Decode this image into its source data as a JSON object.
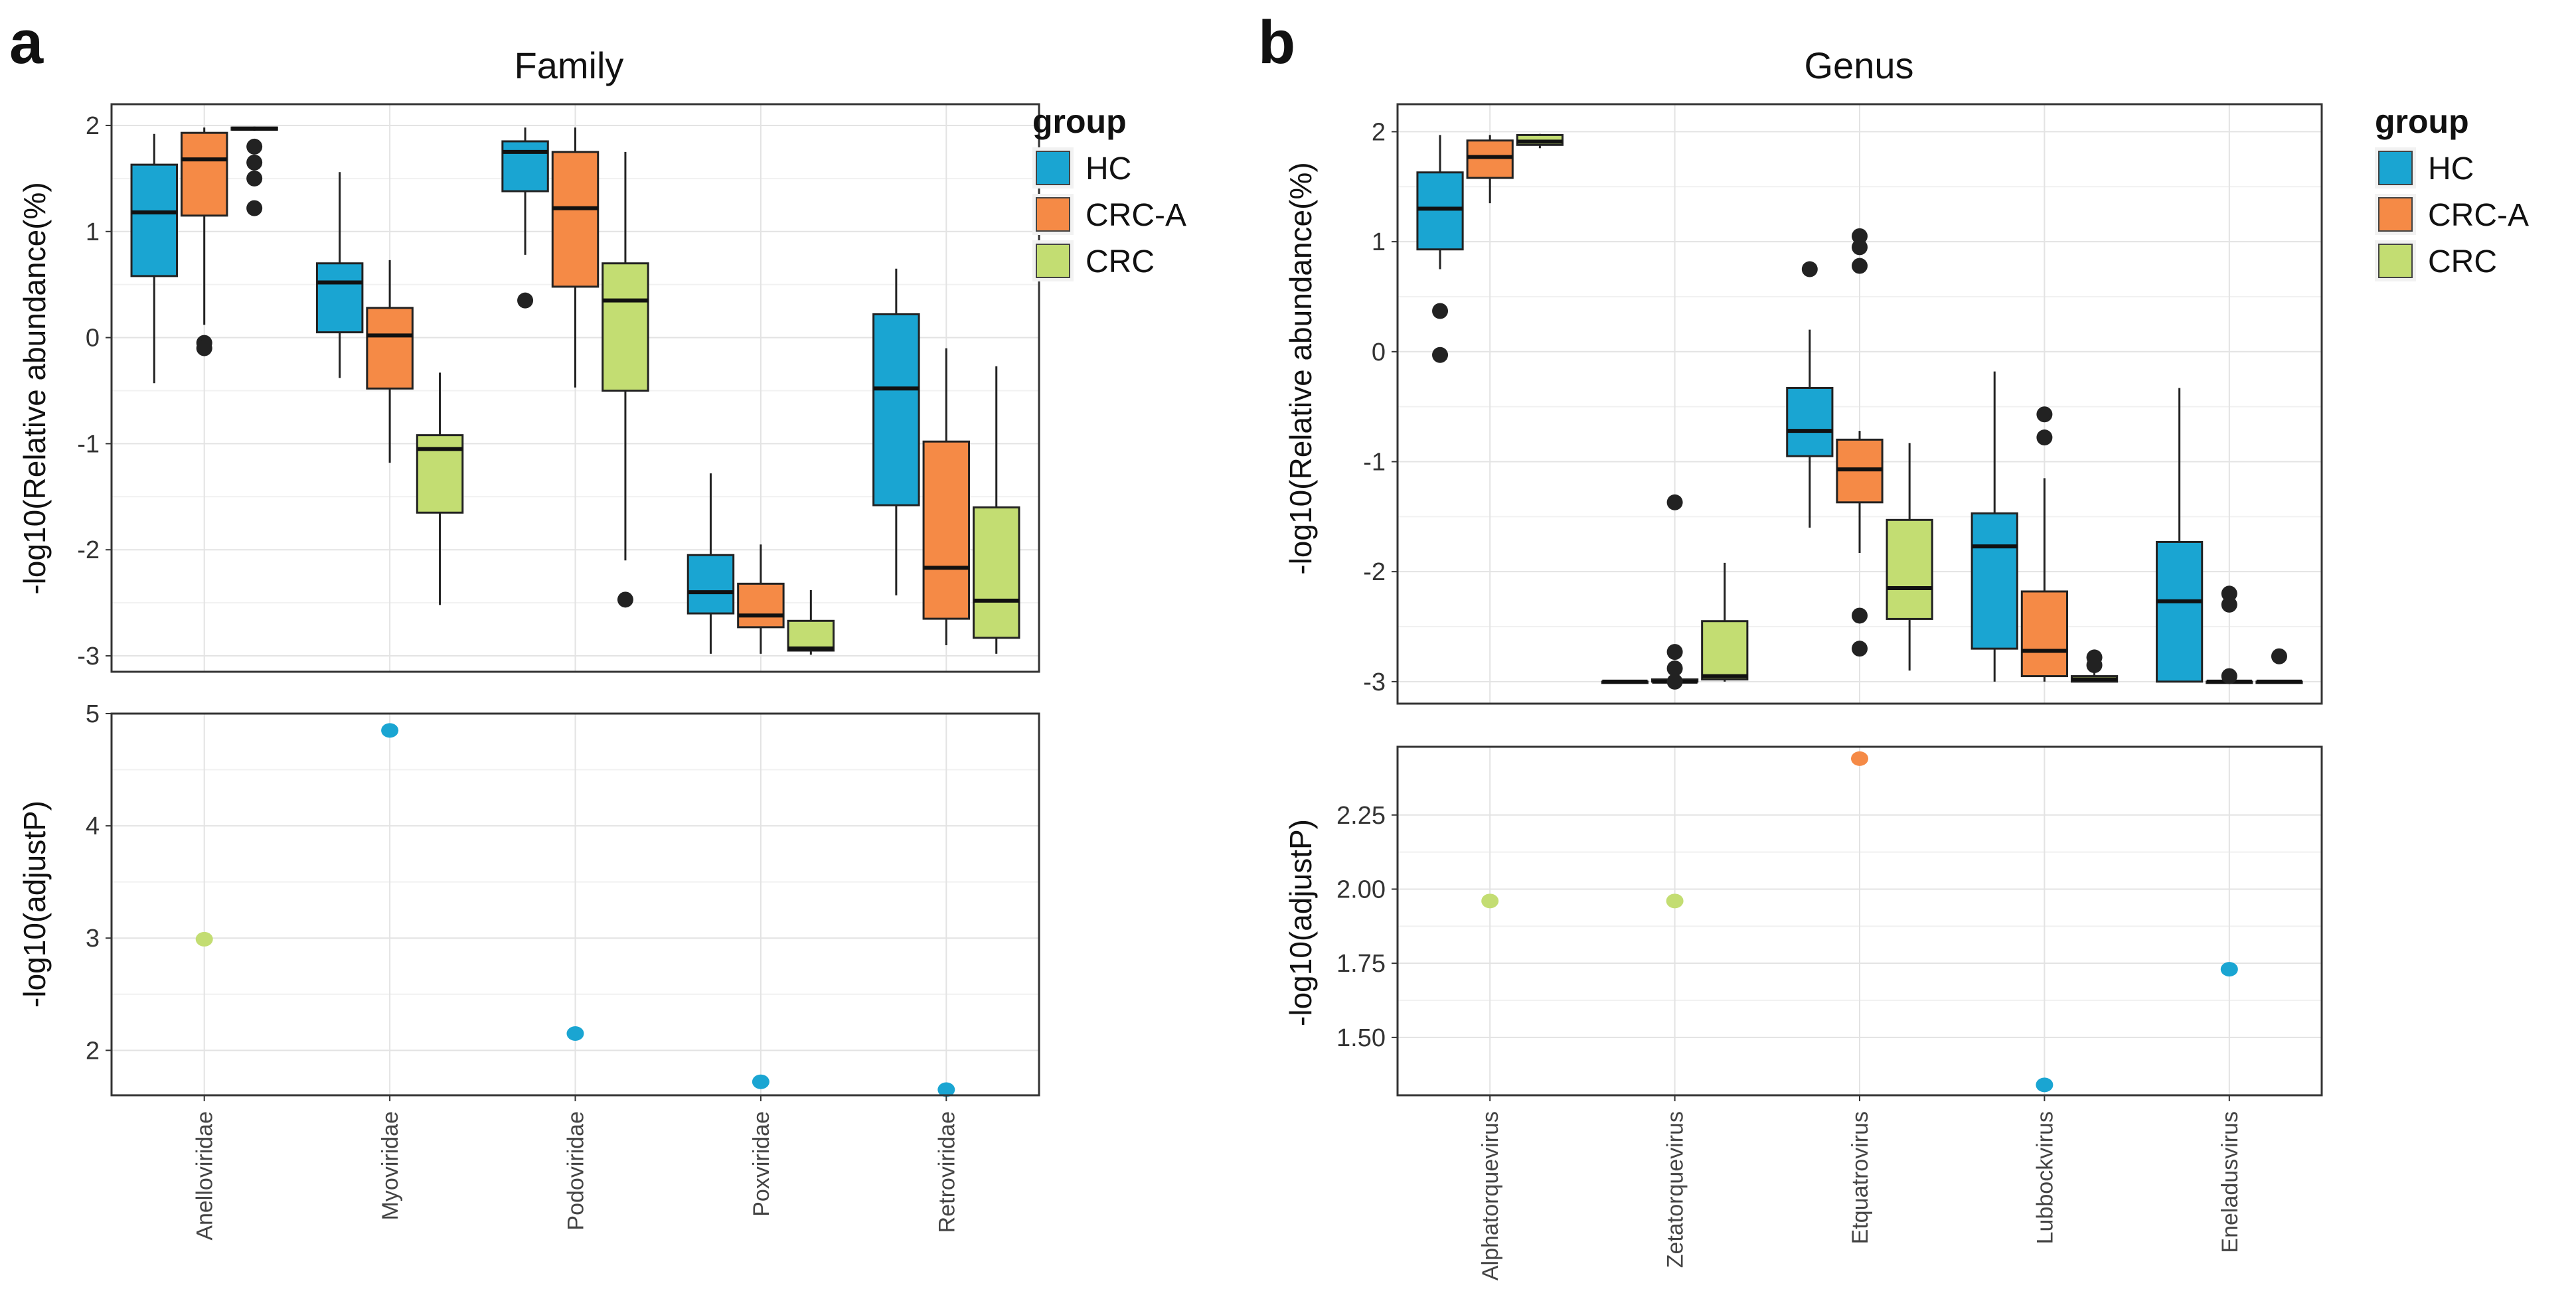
{
  "legend": {
    "title": "group",
    "items": [
      {
        "label": "HC",
        "color": "#1aa5d2"
      },
      {
        "label": "CRC-A",
        "color": "#f58a46"
      },
      {
        "label": "CRC",
        "color": "#c3dd72"
      }
    ]
  },
  "chart_data": [
    {
      "panel": "a",
      "type": "box",
      "title": "Family",
      "ylabel": "-log10(Relative abundance(%)",
      "ylim": [
        -3.15,
        2.2
      ],
      "yticks": [
        "-3",
        "-2",
        "-1",
        "0",
        "1",
        "2"
      ],
      "categories": [
        "Anelloviridae",
        "Myoviridae",
        "Podoviridae",
        "Poxviridae",
        "Retroviridae"
      ],
      "series": [
        {
          "name": "HC",
          "boxes": [
            {
              "q1": 0.58,
              "median": 1.18,
              "q3": 1.63,
              "wlo": -0.43,
              "whi": 1.92,
              "outliers": []
            },
            {
              "q1": 0.05,
              "median": 0.52,
              "q3": 0.7,
              "wlo": -0.38,
              "whi": 1.56,
              "outliers": []
            },
            {
              "q1": 1.38,
              "median": 1.75,
              "q3": 1.85,
              "wlo": 0.78,
              "whi": 1.98,
              "outliers": [
                0.35
              ]
            },
            {
              "q1": -2.6,
              "median": -2.4,
              "q3": -2.05,
              "wlo": -2.98,
              "whi": -1.28,
              "outliers": []
            },
            {
              "q1": -1.58,
              "median": -0.48,
              "q3": 0.22,
              "wlo": -2.43,
              "whi": 0.65,
              "outliers": []
            }
          ]
        },
        {
          "name": "CRC-A",
          "boxes": [
            {
              "q1": 1.15,
              "median": 1.68,
              "q3": 1.93,
              "wlo": 0.12,
              "whi": 1.98,
              "outliers": [
                -0.05,
                -0.1
              ]
            },
            {
              "q1": -0.48,
              "median": 0.02,
              "q3": 0.28,
              "wlo": -1.18,
              "whi": 0.73,
              "outliers": []
            },
            {
              "q1": 0.48,
              "median": 1.22,
              "q3": 1.75,
              "wlo": -0.47,
              "whi": 1.98,
              "outliers": []
            },
            {
              "q1": -2.73,
              "median": -2.62,
              "q3": -2.32,
              "wlo": -2.98,
              "whi": -1.95,
              "outliers": []
            },
            {
              "q1": -2.65,
              "median": -2.17,
              "q3": -0.98,
              "wlo": -2.9,
              "whi": -0.1,
              "outliers": []
            }
          ]
        },
        {
          "name": "CRC",
          "boxes": [
            {
              "q1": 1.96,
              "median": 1.97,
              "q3": 1.98,
              "wlo": 1.95,
              "whi": 1.99,
              "outliers": [
                1.8,
                1.65,
                1.5,
                1.22
              ]
            },
            {
              "q1": -1.65,
              "median": -1.05,
              "q3": -0.92,
              "wlo": -2.52,
              "whi": -0.33,
              "outliers": []
            },
            {
              "q1": -0.5,
              "median": 0.35,
              "q3": 0.7,
              "wlo": -2.1,
              "whi": 1.75,
              "outliers": [
                -2.47
              ]
            },
            {
              "q1": -2.95,
              "median": -2.93,
              "q3": -2.67,
              "wlo": -2.99,
              "whi": -2.38,
              "outliers": []
            },
            {
              "q1": -2.83,
              "median": -2.48,
              "q3": -1.6,
              "wlo": -2.98,
              "whi": -0.27,
              "outliers": []
            }
          ]
        }
      ]
    },
    {
      "panel": "a",
      "type": "scatter",
      "ylabel": "-log10(adjustP)",
      "ylim": [
        1.6,
        5.0
      ],
      "yticks": [
        "2",
        "3",
        "4",
        "5"
      ],
      "categories": [
        "Anelloviridae",
        "Myoviridae",
        "Podoviridae",
        "Poxviridae",
        "Retroviridae"
      ],
      "points": [
        {
          "category": "Anelloviridae",
          "value": 2.99,
          "group": "CRC"
        },
        {
          "category": "Myoviridae",
          "value": 4.85,
          "group": "HC"
        },
        {
          "category": "Podoviridae",
          "value": 2.15,
          "group": "HC"
        },
        {
          "category": "Poxviridae",
          "value": 1.72,
          "group": "HC"
        },
        {
          "category": "Retroviridae",
          "value": 1.65,
          "group": "HC"
        }
      ]
    },
    {
      "panel": "b",
      "type": "box",
      "title": "Genus",
      "ylabel": "-log10(Relative abundance(%)",
      "ylim": [
        -3.2,
        2.25
      ],
      "yticks": [
        "-3",
        "-2",
        "-1",
        "0",
        "1",
        "2"
      ],
      "categories": [
        "Alphatorquevirus",
        "Zetatorquevirus",
        "Etquatrovirus",
        "Lubbockvirus",
        "Eneladusvirus"
      ],
      "series": [
        {
          "name": "HC",
          "boxes": [
            {
              "q1": 0.93,
              "median": 1.3,
              "q3": 1.63,
              "wlo": 0.75,
              "whi": 1.97,
              "outliers": [
                0.37,
                -0.03
              ]
            },
            {
              "q1": -3.0,
              "median": -3.0,
              "q3": -3.0,
              "wlo": -3.0,
              "whi": -3.0,
              "outliers": []
            },
            {
              "q1": -0.95,
              "median": -0.72,
              "q3": -0.33,
              "wlo": -1.6,
              "whi": 0.2,
              "outliers": [
                0.75
              ]
            },
            {
              "q1": -2.7,
              "median": -1.77,
              "q3": -1.47,
              "wlo": -3.0,
              "whi": -0.18,
              "outliers": []
            },
            {
              "q1": -3.0,
              "median": -2.27,
              "q3": -1.73,
              "wlo": -3.0,
              "whi": -0.33,
              "outliers": []
            }
          ]
        },
        {
          "name": "CRC-A",
          "boxes": [
            {
              "q1": 1.58,
              "median": 1.77,
              "q3": 1.92,
              "wlo": 1.35,
              "whi": 1.97,
              "outliers": []
            },
            {
              "q1": -3.0,
              "median": -3.0,
              "q3": -2.98,
              "wlo": -3.0,
              "whi": -2.95,
              "outliers": [
                -1.37,
                -2.73,
                -2.88,
                -3.0
              ]
            },
            {
              "q1": -1.37,
              "median": -1.07,
              "q3": -0.8,
              "wlo": -1.83,
              "whi": -0.72,
              "outliers": [
                1.05,
                0.95,
                0.78,
                -2.4,
                -2.7
              ]
            },
            {
              "q1": -2.95,
              "median": -2.72,
              "q3": -2.18,
              "wlo": -3.0,
              "whi": -1.15,
              "outliers": [
                -0.57,
                -0.78
              ]
            },
            {
              "q1": -3.0,
              "median": -3.0,
              "q3": -3.0,
              "wlo": -3.0,
              "whi": -3.0,
              "outliers": [
                -2.2,
                -2.3,
                -2.95
              ]
            }
          ]
        },
        {
          "name": "CRC",
          "boxes": [
            {
              "q1": 1.88,
              "median": 1.91,
              "q3": 1.97,
              "wlo": 1.85,
              "whi": 1.98,
              "outliers": []
            },
            {
              "q1": -2.98,
              "median": -2.95,
              "q3": -2.45,
              "wlo": -3.0,
              "whi": -1.92,
              "outliers": []
            },
            {
              "q1": -2.43,
              "median": -2.15,
              "q3": -1.53,
              "wlo": -2.9,
              "whi": -0.83,
              "outliers": []
            },
            {
              "q1": -3.0,
              "median": -2.98,
              "q3": -2.95,
              "wlo": -3.0,
              "whi": -2.9,
              "outliers": [
                -2.78,
                -2.85
              ]
            },
            {
              "q1": -3.0,
              "median": -3.0,
              "q3": -3.0,
              "wlo": -3.0,
              "whi": -3.0,
              "outliers": [
                -2.77
              ]
            }
          ]
        }
      ]
    },
    {
      "panel": "b",
      "type": "scatter",
      "ylabel": "-log10(adjustP)",
      "ylim": [
        1.305,
        2.48
      ],
      "yticks": [
        "1.50",
        "1.75",
        "2.00",
        "2.25"
      ],
      "categories": [
        "Alphatorquevirus",
        "Zetatorquevirus",
        "Etquatrovirus",
        "Lubbockvirus",
        "Eneladusvirus"
      ],
      "points": [
        {
          "category": "Alphatorquevirus",
          "value": 1.96,
          "group": "CRC"
        },
        {
          "category": "Zetatorquevirus",
          "value": 1.96,
          "group": "CRC"
        },
        {
          "category": "Etquatrovirus",
          "value": 2.44,
          "group": "CRC-A"
        },
        {
          "category": "Lubbockvirus",
          "value": 1.34,
          "group": "HC"
        },
        {
          "category": "Eneladusvirus",
          "value": 1.73,
          "group": "HC"
        }
      ]
    }
  ]
}
